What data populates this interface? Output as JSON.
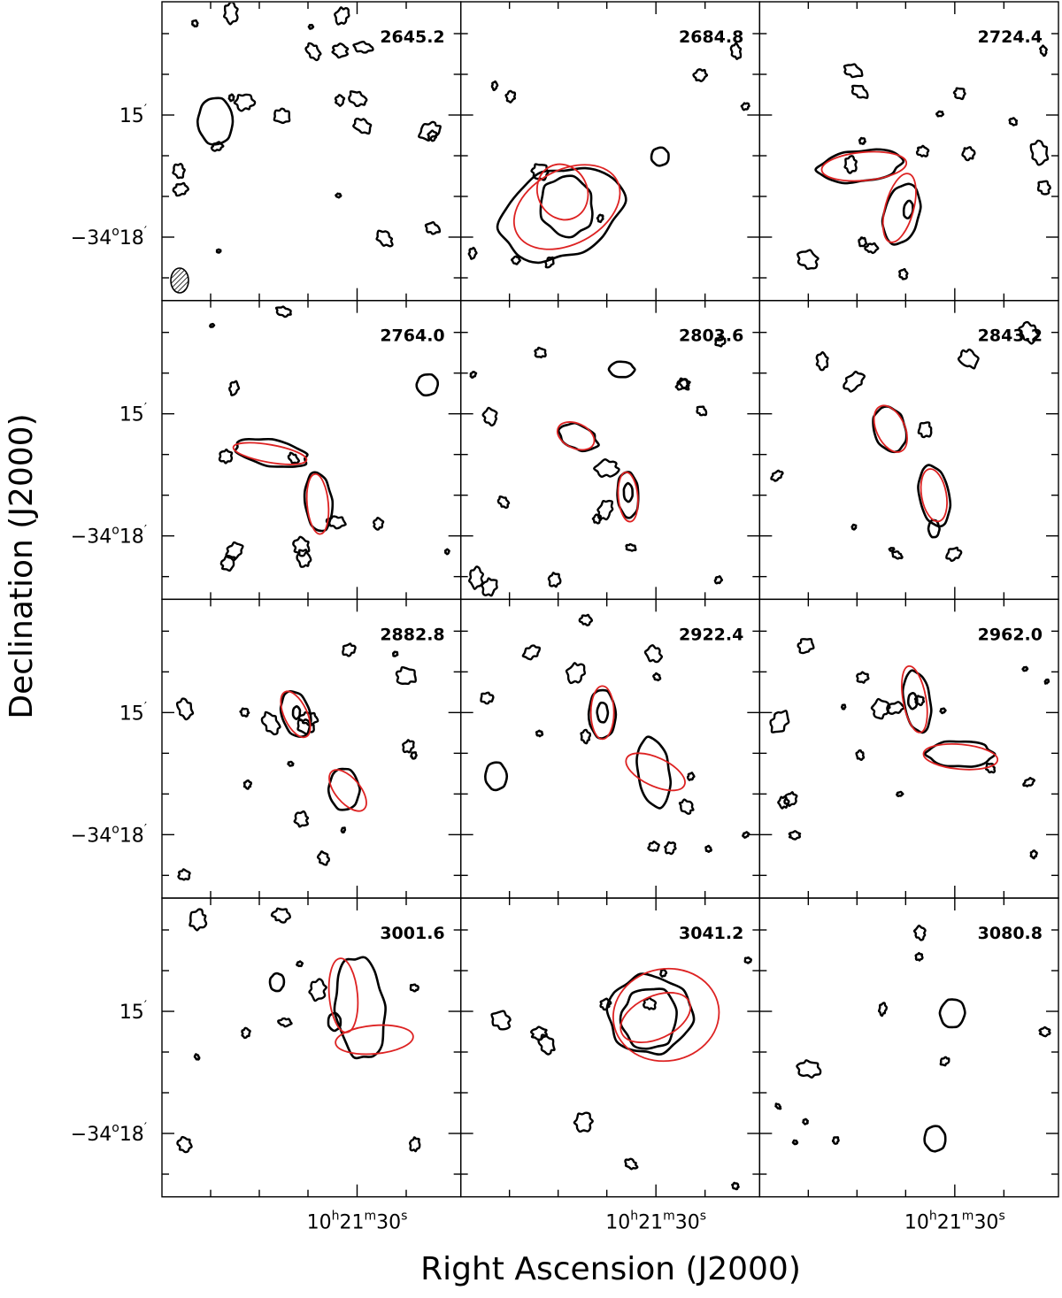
{
  "figure": {
    "xlabel": "Right Ascension (J2000)",
    "ylabel": "Declination (J2000)",
    "ra_tick": {
      "h": "10",
      "m": "21",
      "s": "30"
    },
    "dec_ticks": [
      {
        "arcmin": "15"
      },
      {
        "sign_deg": "−34",
        "deg_mark": "o",
        "arcmin": "18"
      }
    ],
    "contour_colors": {
      "data": "#000000",
      "model": "#dd2222"
    },
    "beam_icon": "hatched-ellipse"
  },
  "panels": [
    {
      "velocity": "2645.2"
    },
    {
      "velocity": "2684.8"
    },
    {
      "velocity": "2724.4"
    },
    {
      "velocity": "2764.0"
    },
    {
      "velocity": "2803.6"
    },
    {
      "velocity": "2843.2"
    },
    {
      "velocity": "2882.8"
    },
    {
      "velocity": "2922.4"
    },
    {
      "velocity": "2962.0"
    },
    {
      "velocity": "3001.6"
    },
    {
      "velocity": "3041.2"
    },
    {
      "velocity": "3080.8"
    }
  ]
}
